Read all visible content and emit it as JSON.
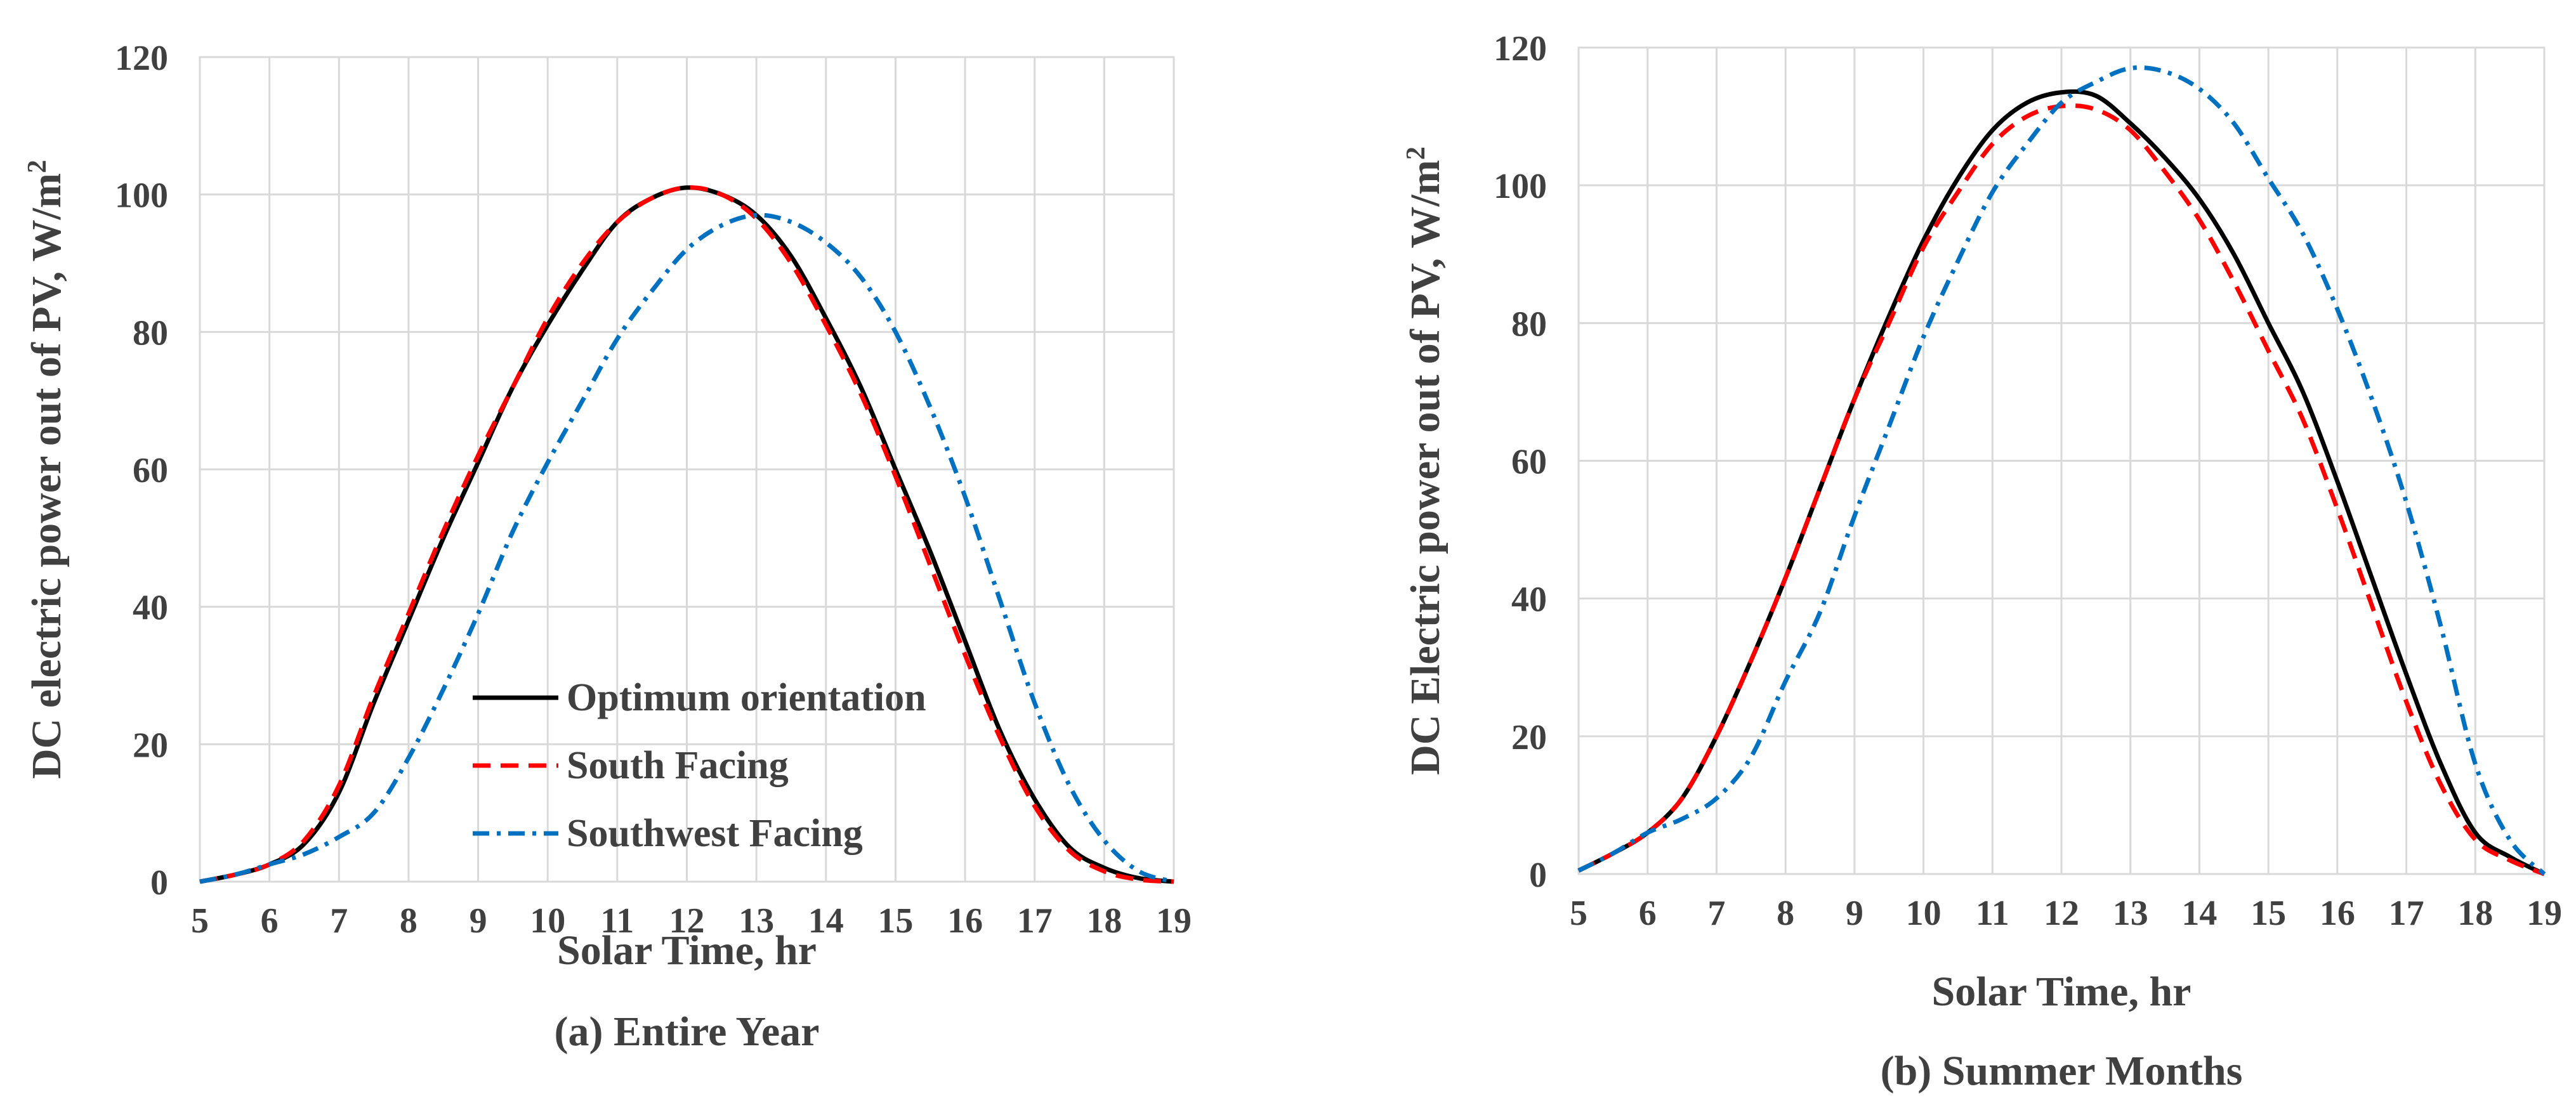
{
  "chart_data": [
    {
      "type": "line",
      "caption": "(a) Entire Year",
      "xlabel": "Solar Time, hr",
      "ylabel": "DC electric power out of PV, W/m",
      "ylabel_sup": "2",
      "xlim": [
        5,
        19
      ],
      "ylim": [
        0,
        120
      ],
      "xticks": [
        5,
        6,
        7,
        8,
        9,
        10,
        11,
        12,
        13,
        14,
        15,
        16,
        17,
        18,
        19
      ],
      "yticks": [
        0,
        20,
        40,
        60,
        80,
        100,
        120
      ],
      "grid": true,
      "legend": {
        "placement": "lower-center"
      },
      "series": [
        {
          "name": "Optimum orientation",
          "color": "#000000",
          "style": "solid",
          "x": [
            5,
            5.5,
            6,
            6.5,
            7,
            7.5,
            8,
            8.5,
            9,
            9.5,
            10,
            10.5,
            11,
            11.5,
            12,
            12.5,
            13,
            13.5,
            14,
            14.5,
            15,
            15.5,
            16,
            16.5,
            17,
            17.5,
            18,
            18.5,
            19
          ],
          "y": [
            0,
            1,
            2.5,
            5.5,
            13,
            26,
            38,
            50,
            61,
            72,
            81,
            89,
            96,
            99.5,
            101,
            100,
            97,
            91,
            82,
            72,
            60,
            48,
            35,
            22,
            12,
            5,
            2,
            0.5,
            0
          ]
        },
        {
          "name": "South Facing",
          "color": "#ff0000",
          "style": "dashed",
          "x": [
            5,
            5.5,
            6,
            6.5,
            7,
            7.5,
            8,
            8.5,
            9,
            9.5,
            10,
            10.5,
            11,
            11.5,
            12,
            12.5,
            13,
            13.5,
            14,
            14.5,
            15,
            15.5,
            16,
            16.5,
            17,
            17.5,
            18,
            18.5,
            19
          ],
          "y": [
            0,
            1,
            2.5,
            6,
            14,
            27,
            39,
            51,
            62,
            72,
            82,
            90,
            96,
            99.5,
            101,
            100,
            96.5,
            90,
            81,
            71,
            59,
            46,
            33,
            21,
            11,
            4.5,
            1.5,
            0.3,
            0
          ]
        },
        {
          "name": "Southwest Facing",
          "color": "#0070c0",
          "style": "dashdot",
          "x": [
            5,
            5.5,
            6,
            6.5,
            7,
            7.5,
            8,
            8.5,
            9,
            9.5,
            10,
            10.5,
            11,
            11.5,
            12,
            12.5,
            13,
            13.5,
            14,
            14.5,
            15,
            15.5,
            16,
            16.5,
            17,
            17.5,
            18,
            18.5,
            19
          ],
          "y": [
            0,
            1,
            2.5,
            4,
            6.5,
            10,
            18,
            28,
            39,
            51,
            61,
            70,
            79,
            86,
            92,
            95.5,
            97,
            96,
            93,
            88,
            80,
            69,
            56,
            41,
            26,
            14,
            6,
            1.5,
            0
          ]
        }
      ]
    },
    {
      "type": "line",
      "caption": "(b) Summer Months",
      "xlabel": "Solar Time, hr",
      "ylabel": "DC Electric power out of PV, W/m",
      "ylabel_sup": "2",
      "xlim": [
        5,
        19
      ],
      "ylim": [
        0,
        120
      ],
      "xticks": [
        5,
        6,
        7,
        8,
        9,
        10,
        11,
        12,
        13,
        14,
        15,
        16,
        17,
        18,
        19
      ],
      "yticks": [
        0,
        20,
        40,
        60,
        80,
        100,
        120
      ],
      "grid": true,
      "series": [
        {
          "name": "Optimum orientation",
          "color": "#000000",
          "style": "solid",
          "x": [
            5,
            5.5,
            6,
            6.5,
            7,
            7.5,
            8,
            8.5,
            9,
            9.5,
            10,
            10.5,
            11,
            11.5,
            12,
            12.5,
            13,
            13.5,
            14,
            14.5,
            15,
            15.5,
            16,
            16.5,
            17,
            17.5,
            18,
            18.5,
            19
          ],
          "y": [
            0.5,
            3,
            6,
            11,
            20,
            31,
            43,
            56,
            69,
            81,
            92,
            101,
            108,
            112,
            113.5,
            113,
            109,
            104,
            98,
            90,
            80,
            70,
            57,
            43,
            29,
            16,
            6,
            2.5,
            0
          ]
        },
        {
          "name": "South Facing",
          "color": "#ff0000",
          "style": "dashed",
          "x": [
            5,
            5.5,
            6,
            6.5,
            7,
            7.5,
            8,
            8.5,
            9,
            9.5,
            10,
            10.5,
            11,
            11.5,
            12,
            12.5,
            13,
            13.5,
            14,
            14.5,
            15,
            15.5,
            16,
            16.5,
            17,
            17.5,
            18,
            18.5,
            19
          ],
          "y": [
            0.5,
            3,
            6,
            11,
            20,
            31,
            43,
            56,
            69,
            80,
            91,
            99,
            106,
            110,
            111.5,
            111,
            108,
            102,
            95,
            86,
            76,
            66,
            53,
            39,
            25,
            13,
            5,
            2,
            0
          ]
        },
        {
          "name": "Southwest Facing",
          "color": "#0070c0",
          "style": "dashdot",
          "x": [
            5,
            5.5,
            6,
            6.5,
            7,
            7.5,
            8,
            8.5,
            9,
            9.5,
            10,
            10.5,
            11,
            11.5,
            12,
            12.5,
            13,
            13.5,
            14,
            14.5,
            15,
            15.5,
            16,
            16.5,
            17,
            17.5,
            18,
            18.5,
            19
          ],
          "y": [
            0.5,
            3,
            6,
            8,
            11,
            17,
            28,
            38,
            52,
            65,
            78,
            89,
            99,
            106,
            112,
            115,
            117,
            116.5,
            114,
            109,
            101,
            93,
            82,
            69,
            54,
            36,
            16,
            5,
            0
          ]
        }
      ]
    }
  ]
}
